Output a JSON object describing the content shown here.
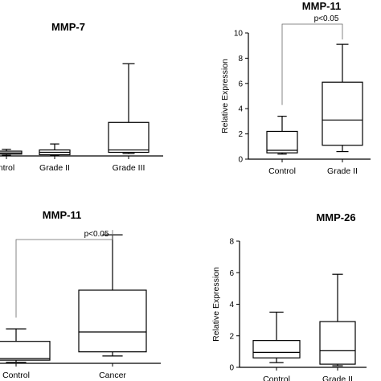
{
  "chart_data": [
    {
      "type": "box",
      "title": "MMP-7",
      "categories": [
        "Control",
        "Grade II",
        "Grade III"
      ],
      "category_labels": [
        "ntrol",
        "Grade II",
        "Grade III"
      ],
      "boxes": [
        {
          "min": 0.05,
          "q1": 0.15,
          "median": 0.25,
          "q3": 0.4,
          "max": 0.55
        },
        {
          "min": 0.05,
          "q1": 0.1,
          "median": 0.3,
          "q3": 0.5,
          "max": 1.0
        },
        {
          "min": 0.2,
          "q1": 0.3,
          "median": 0.5,
          "q3": 2.8,
          "max": 7.7
        }
      ],
      "ylim": [
        0,
        10
      ],
      "y_ticks": [],
      "ylabel": "",
      "significance": null
    },
    {
      "type": "box",
      "title": "MMP-11",
      "categories": [
        "Control",
        "Grade II"
      ],
      "category_labels": [
        "Control",
        "Grade II"
      ],
      "boxes": [
        {
          "min": 0.4,
          "q1": 0.5,
          "median": 0.7,
          "q3": 2.2,
          "max": 3.4
        },
        {
          "min": 0.6,
          "q1": 1.1,
          "median": 3.1,
          "q3": 6.1,
          "max": 9.1
        }
      ],
      "ylim": [
        0,
        10
      ],
      "y_ticks": [
        "0",
        "2",
        "4",
        "6",
        "8",
        "10"
      ],
      "ylabel": "Relative Expression",
      "significance": {
        "label": "p<0.05",
        "from": 0,
        "to": 1
      }
    },
    {
      "type": "box",
      "title": "MMP-11",
      "categories": [
        "Control",
        "Cancer"
      ],
      "category_labels": [
        "Control",
        "Cancer"
      ],
      "boxes": [
        {
          "min": 0.1,
          "q1": 0.3,
          "median": 0.45,
          "q3": 2.1,
          "max": 3.3
        },
        {
          "min": 0.7,
          "q1": 1.1,
          "median": 3.0,
          "q3": 7.0,
          "max": 12.3
        }
      ],
      "ylim": [
        0,
        15
      ],
      "y_ticks": [],
      "ylabel": "",
      "significance": {
        "label": "p<0.05",
        "from": 0,
        "to": 1
      }
    },
    {
      "type": "box",
      "title": "MMP-26",
      "categories": [
        "Control",
        "Grade II"
      ],
      "category_labels": [
        "Control",
        "Grade II"
      ],
      "boxes": [
        {
          "min": 0.3,
          "q1": 0.6,
          "median": 0.95,
          "q3": 1.7,
          "max": 3.5
        },
        {
          "min": 0.1,
          "q1": 0.2,
          "median": 1.05,
          "q3": 2.9,
          "max": 5.9
        }
      ],
      "ylim": [
        0,
        8
      ],
      "y_ticks": [
        "0",
        "2",
        "4",
        "6",
        "8"
      ],
      "ylabel": "Relative Expression",
      "significance": null
    }
  ]
}
